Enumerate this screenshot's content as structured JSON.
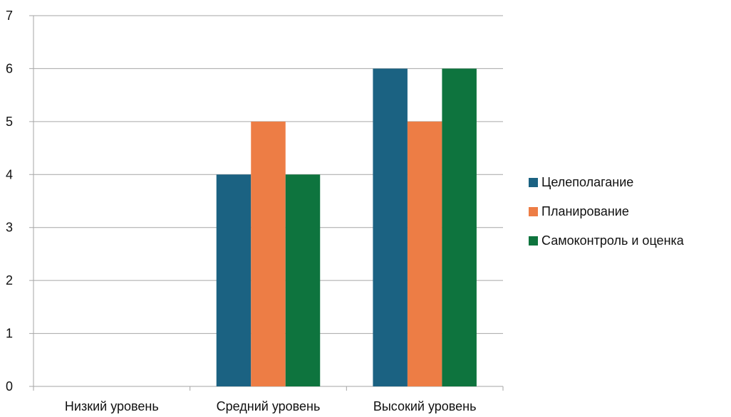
{
  "chart_data": {
    "type": "bar",
    "title": "",
    "xlabel": "",
    "ylabel": "",
    "categories": [
      "Низкий уровень",
      "Средний уровень",
      "Высокий уровень"
    ],
    "series": [
      {
        "name": "Целеполагание",
        "color": "#1b6282",
        "values": [
          0,
          4,
          6
        ]
      },
      {
        "name": "Планирование",
        "color": "#ed7d45",
        "values": [
          0,
          5,
          5
        ]
      },
      {
        "name": "Самоконтроль и оценка",
        "color": "#0e743e",
        "values": [
          0,
          4,
          6
        ]
      }
    ],
    "ylim": [
      0,
      7
    ],
    "yticks": [
      "0",
      "1",
      "2",
      "3",
      "4",
      "5",
      "6",
      "7"
    ],
    "grid": true,
    "legend_position": "right"
  }
}
